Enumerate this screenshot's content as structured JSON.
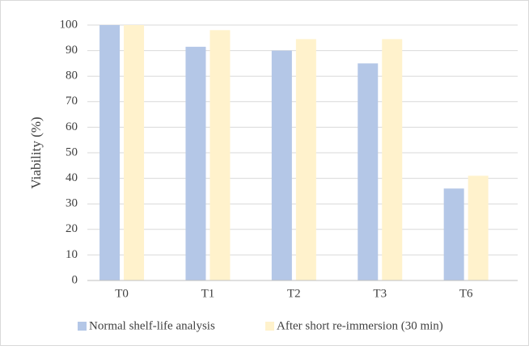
{
  "chart_data": {
    "type": "bar",
    "y_label": "Viability (%)",
    "categories": [
      "T0",
      "T1",
      "T2",
      "T3",
      "T6"
    ],
    "series": [
      {
        "name": "Normal shelf-life analysis",
        "color": "#b4c7e7",
        "values": [
          100,
          91.5,
          90,
          85,
          36
        ]
      },
      {
        "name": "After short re-immersion (30 min)",
        "color": "#fff2cc",
        "values": [
          100,
          98,
          94.5,
          94.5,
          41
        ]
      }
    ],
    "ylim": [
      0,
      100
    ],
    "yticks": [
      0,
      10,
      20,
      30,
      40,
      50,
      60,
      70,
      80,
      90,
      100
    ],
    "grid": true,
    "legend": "bottom"
  }
}
